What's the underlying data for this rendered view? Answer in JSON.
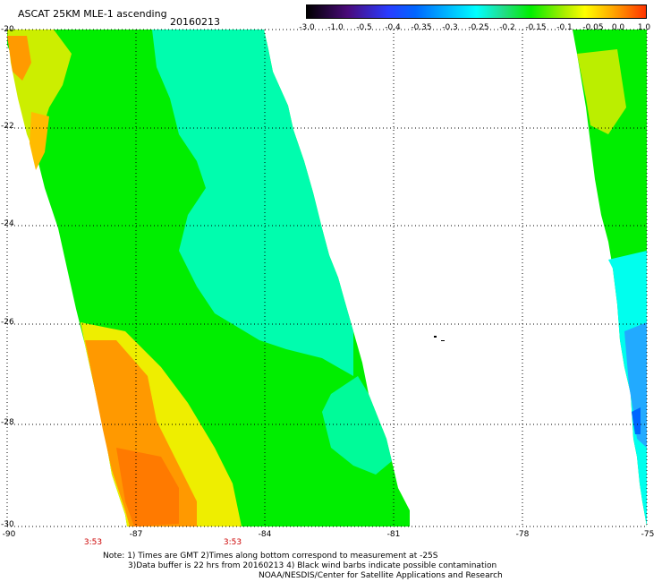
{
  "header": {
    "title": "ASCAT 25KM MLE-1 ascending",
    "date": "20160213"
  },
  "colorbar": {
    "tick_labels": [
      "-3.0",
      "-1.0",
      "-0.5",
      "-0.4",
      "-0.35",
      "-0.3",
      "-0.25",
      "-0.2",
      "-0.15",
      "-0.1",
      "-0.05",
      "0.0",
      "1.0"
    ]
  },
  "axes": {
    "lat_labels": [
      "-20",
      "-22",
      "-24",
      "-26",
      "-28",
      "-30"
    ],
    "lon_labels": [
      "-90",
      "-87",
      "-84",
      "-81",
      "-78",
      "-75"
    ],
    "time_labels": [
      "3:53",
      "3:53"
    ]
  },
  "notes": {
    "line1": "Note: 1) Times are GMT 2)Times along bottom correspond to measurement at -25S",
    "line2": "3)Data buffer is 22 hrs from 20160213 4) Black wind barbs indicate possible contamination",
    "line3": "NOAA/NESDIS/Center for Satellite Applications and Research"
  },
  "colors": {
    "swath_green": "#00ee00",
    "swath_cyan": "#00ffff",
    "swath_orange": "#ff8800",
    "grid": "#000000"
  }
}
